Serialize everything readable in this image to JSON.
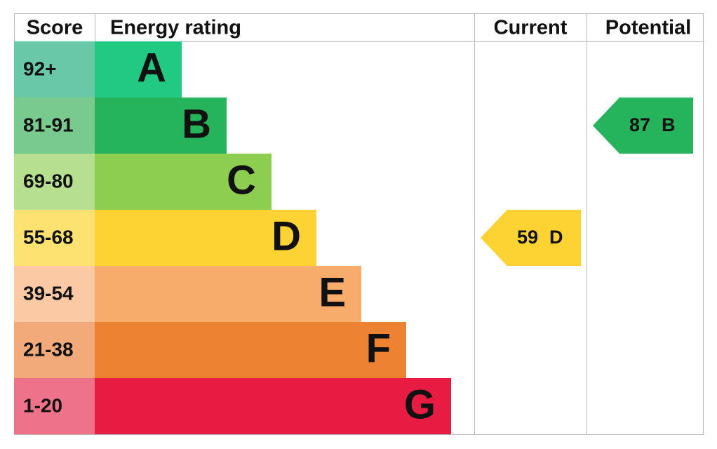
{
  "header": {
    "score": "Score",
    "rating": "Energy rating",
    "current": "Current",
    "potential": "Potential"
  },
  "bands": [
    {
      "score": "92+",
      "letter": "A",
      "color": "#21c983",
      "light": "#68c8a8"
    },
    {
      "score": "81-91",
      "letter": "B",
      "color": "#25b35c",
      "light": "#78ca8e"
    },
    {
      "score": "69-80",
      "letter": "C",
      "color": "#8dce51",
      "light": "#b7df90"
    },
    {
      "score": "55-68",
      "letter": "D",
      "color": "#fdd333",
      "light": "#fee271"
    },
    {
      "score": "39-54",
      "letter": "E",
      "color": "#f8ac6b",
      "light": "#fbc9a3"
    },
    {
      "score": "21-38",
      "letter": "F",
      "color": "#ed8233",
      "light": "#f3aa7a"
    },
    {
      "score": "1-20",
      "letter": "G",
      "color": "#e81c42",
      "light": "#ee7289"
    }
  ],
  "current": {
    "value": "59",
    "letter": "D"
  },
  "potential": {
    "value": "87",
    "letter": "B"
  }
}
